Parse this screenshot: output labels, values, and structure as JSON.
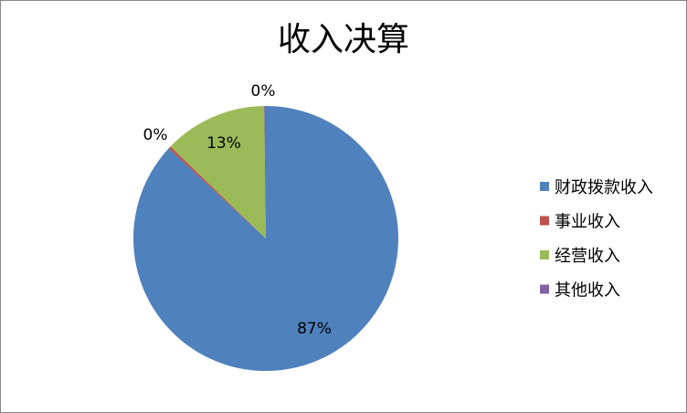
{
  "chart_data": {
    "type": "pie",
    "title": "收入决算",
    "start": "top",
    "direction": "clockwise",
    "legend_position": "right",
    "slices": [
      {
        "name": "财政拨款收入",
        "value": 86.9,
        "label": "87%",
        "color": "#4F81BD"
      },
      {
        "name": "事业收入",
        "value": 0.3,
        "label": "0%",
        "color": "#C0504D"
      },
      {
        "name": "经营收入",
        "value": 12.6,
        "label": "13%",
        "color": "#9BBB59"
      },
      {
        "name": "其他收入",
        "value": 0.2,
        "label": "0%",
        "color": "#8064A2"
      }
    ]
  }
}
